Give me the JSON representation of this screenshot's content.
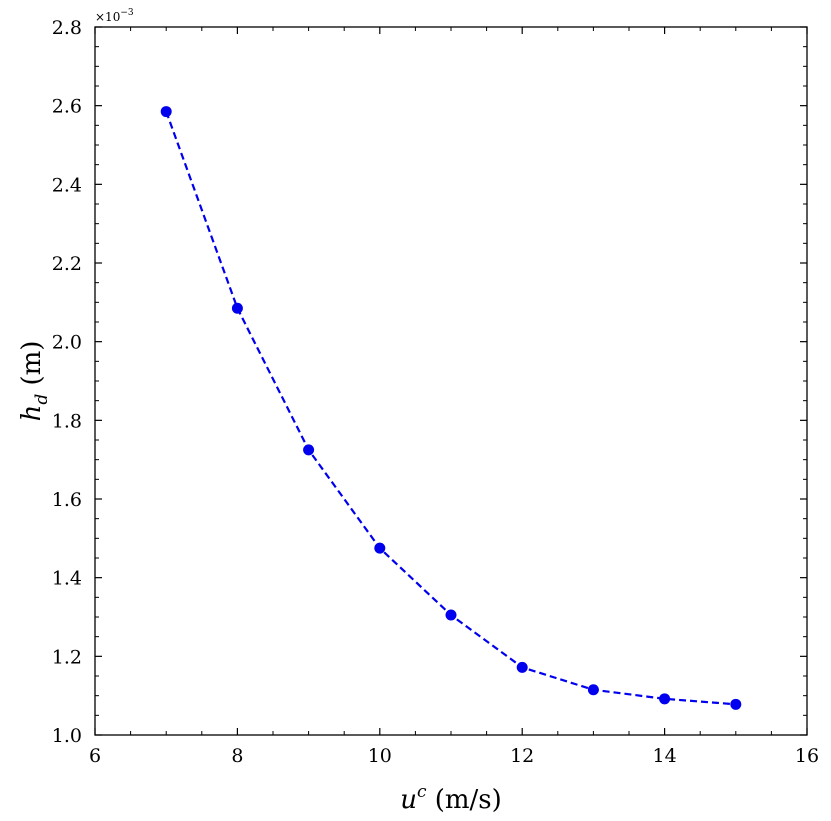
{
  "chart_data": {
    "type": "line",
    "title": "",
    "xlabel": {
      "base": "u",
      "sup": "c",
      "rest": " (m/s)"
    },
    "ylabel": {
      "base": "h",
      "sub": "d",
      "rest": " (m)"
    },
    "y_exponent_label": "×10",
    "y_exponent_power": "−3",
    "xlim": [
      6,
      16
    ],
    "ylim": [
      1.0,
      2.8
    ],
    "x_ticks": [
      6,
      8,
      10,
      12,
      14,
      16
    ],
    "y_ticks": [
      1.0,
      1.2,
      1.4,
      1.6,
      1.8,
      2.0,
      2.2,
      2.4,
      2.6,
      2.8
    ],
    "x_tick_labels": [
      "6",
      "8",
      "10",
      "12",
      "14",
      "16"
    ],
    "y_tick_labels": [
      "1.0",
      "1.2",
      "1.4",
      "1.6",
      "1.8",
      "2.0",
      "2.2",
      "2.4",
      "2.6",
      "2.8"
    ],
    "grid": false,
    "series": [
      {
        "x": [
          7,
          8,
          9,
          10,
          11,
          12,
          13,
          14,
          15
        ],
        "y": [
          2.585,
          2.085,
          1.725,
          1.475,
          1.305,
          1.172,
          1.115,
          1.092,
          1.078
        ],
        "color": "#0000ee",
        "line_style": "dashed",
        "marker": "circle"
      }
    ]
  }
}
